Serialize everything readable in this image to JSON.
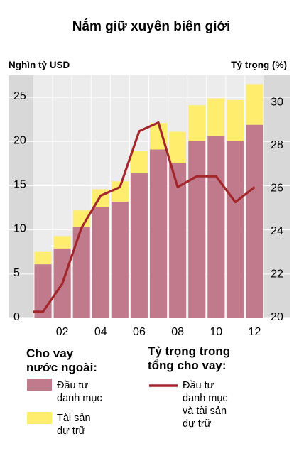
{
  "chart_data": {
    "type": "bar+line",
    "title": "Nắm giữ xuyên biên giới",
    "left_axis": {
      "label": "Nghìn tỷ USD",
      "ylim": [
        0,
        27.5
      ],
      "ticks": [
        "0",
        "5",
        "10",
        "15",
        "20",
        "25"
      ],
      "tick_values": [
        0,
        5,
        10,
        15,
        20,
        25
      ]
    },
    "right_axis": {
      "label": "Tỷ trọng (%)",
      "ylim": [
        20,
        31.3
      ],
      "ticks": [
        "20",
        "22",
        "24",
        "26",
        "28",
        "30"
      ],
      "tick_values": [
        20,
        22,
        24,
        26,
        28,
        30
      ]
    },
    "x_ticks": [
      "02",
      "04",
      "06",
      "08",
      "10",
      "12"
    ],
    "x_tick_positions": [
      1.5,
      3.5,
      5.5,
      7.5,
      9.5,
      11.5
    ],
    "periods": 12,
    "grid": true,
    "bars": {
      "portfolio": [
        6.1,
        7.9,
        10.3,
        12.6,
        13.2,
        16.4,
        19.1,
        17.6,
        20.1,
        20.6,
        20.1,
        21.9
      ],
      "reserves": [
        1.4,
        1.4,
        1.9,
        2.0,
        2.3,
        2.5,
        3.0,
        3.5,
        4.0,
        4.3,
        4.6,
        4.6
      ]
    },
    "share_line": {
      "x": [
        0.0,
        0.5,
        1.5,
        2.5,
        3.5,
        4.5,
        5.5,
        6.5,
        7.5,
        8.5,
        9.5,
        10.5,
        11.5
      ],
      "y": [
        20.3,
        20.3,
        21.6,
        24.2,
        25.7,
        26.1,
        28.7,
        29.1,
        26.1,
        26.6,
        26.6,
        25.4,
        26.1
      ]
    },
    "legend": {
      "bars_heading": "Cho vay nước ngoài:",
      "bars_heading_lines": [
        "Cho vay",
        "nước ngoài:"
      ],
      "line_heading": "Tỷ trọng trong tổng cho vay:",
      "line_heading_lines": [
        "Tỷ trọng trong",
        "tổng cho vay:"
      ],
      "portfolio_label_lines": [
        "Đầu tư",
        "danh mục"
      ],
      "reserves_label_lines": [
        "Tài sản",
        "dự trữ"
      ],
      "line_label_lines": [
        "Đầu tư",
        "danh mục",
        "và tài sản",
        "dự trữ"
      ]
    },
    "colors": {
      "portfolio": "#c07a8c",
      "reserves": "#ffee6e",
      "line": "#a3262a",
      "band_dark": "#d8d8d8",
      "band_light": "#ececec",
      "grid": "#ffffff"
    }
  }
}
